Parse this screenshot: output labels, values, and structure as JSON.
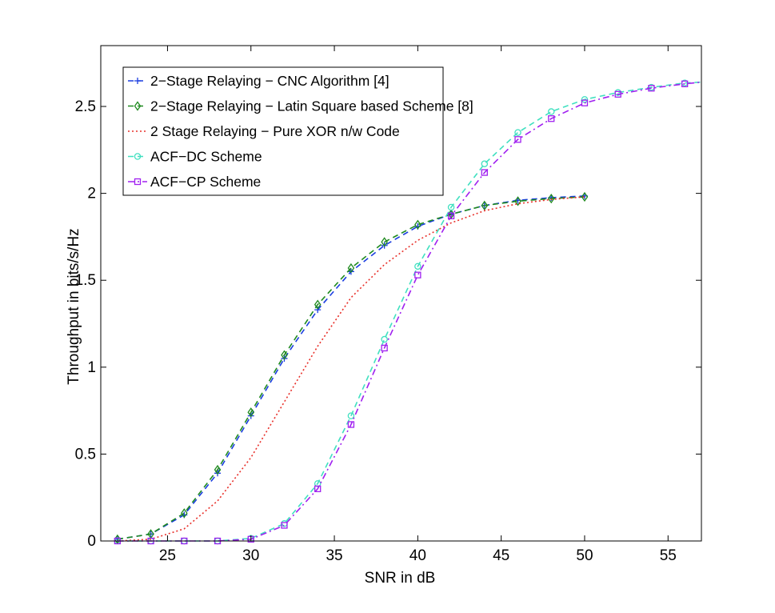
{
  "chart_data": {
    "type": "line",
    "xlabel": "SNR in dB",
    "ylabel": "Throughput in bits/s/Hz",
    "xlim": [
      21,
      57
    ],
    "ylim": [
      0,
      2.85
    ],
    "xticks": [
      25,
      30,
      35,
      40,
      45,
      50,
      55
    ],
    "yticks": [
      0,
      0.5,
      1,
      1.5,
      2,
      2.5
    ],
    "ytick_labels": [
      "0",
      "0.5",
      "1",
      "1.5",
      "2",
      "2.5"
    ],
    "grid": false,
    "legend_position": "top-left",
    "series": [
      {
        "name": "2−Stage Relaying − CNC Algorithm [4]",
        "color": "#1a3de0",
        "dash": "dashed",
        "marker": "plus",
        "points": [
          [
            22,
            0.01
          ],
          [
            24,
            0.04
          ],
          [
            26,
            0.15
          ],
          [
            28,
            0.39
          ],
          [
            30,
            0.72
          ],
          [
            32,
            1.05
          ],
          [
            34,
            1.33
          ],
          [
            36,
            1.55
          ],
          [
            38,
            1.7
          ],
          [
            40,
            1.81
          ],
          [
            42,
            1.88
          ],
          [
            44,
            1.93
          ],
          [
            46,
            1.96
          ],
          [
            48,
            1.975
          ],
          [
            50,
            1.985
          ]
        ]
      },
      {
        "name": "2−Stage Relaying − Latin Square based Scheme [8]",
        "color": "#1f8a1f",
        "dash": "dashed",
        "marker": "diamond",
        "points": [
          [
            22,
            0.01
          ],
          [
            24,
            0.04
          ],
          [
            26,
            0.16
          ],
          [
            28,
            0.41
          ],
          [
            30,
            0.74
          ],
          [
            32,
            1.07
          ],
          [
            34,
            1.36
          ],
          [
            36,
            1.57
          ],
          [
            38,
            1.72
          ],
          [
            40,
            1.82
          ],
          [
            42,
            1.88
          ],
          [
            44,
            1.93
          ],
          [
            46,
            1.955
          ],
          [
            48,
            1.97
          ],
          [
            50,
            1.98
          ]
        ]
      },
      {
        "name": "2 Stage Relaying − Pure XOR n/w Code",
        "color": "#e8302a",
        "dash": "dotted",
        "marker": "none",
        "points": [
          [
            22,
            0.0
          ],
          [
            24,
            0.01
          ],
          [
            26,
            0.07
          ],
          [
            28,
            0.23
          ],
          [
            30,
            0.48
          ],
          [
            32,
            0.8
          ],
          [
            34,
            1.12
          ],
          [
            36,
            1.4
          ],
          [
            38,
            1.59
          ],
          [
            40,
            1.73
          ],
          [
            42,
            1.83
          ],
          [
            44,
            1.9
          ],
          [
            46,
            1.94
          ],
          [
            48,
            1.965
          ],
          [
            50,
            1.98
          ]
        ]
      },
      {
        "name": "ACF−DC Scheme",
        "color": "#40e0c0",
        "dash": "dashed",
        "marker": "circle",
        "points": [
          [
            22,
            0.0
          ],
          [
            24,
            0.0
          ],
          [
            26,
            0.0
          ],
          [
            28,
            0.0
          ],
          [
            30,
            0.015
          ],
          [
            32,
            0.1
          ],
          [
            34,
            0.33
          ],
          [
            36,
            0.72
          ],
          [
            38,
            1.16
          ],
          [
            40,
            1.58
          ],
          [
            42,
            1.92
          ],
          [
            44,
            2.17
          ],
          [
            46,
            2.35
          ],
          [
            48,
            2.47
          ],
          [
            50,
            2.54
          ],
          [
            52,
            2.58
          ],
          [
            54,
            2.61
          ],
          [
            56,
            2.635
          ],
          [
            57,
            2.64
          ]
        ]
      },
      {
        "name": "ACF−CP Scheme",
        "color": "#a020f0",
        "dash": "dashdot",
        "marker": "square",
        "points": [
          [
            22,
            0.0
          ],
          [
            24,
            0.0
          ],
          [
            26,
            0.0
          ],
          [
            28,
            0.0
          ],
          [
            30,
            0.01
          ],
          [
            32,
            0.09
          ],
          [
            34,
            0.3
          ],
          [
            36,
            0.67
          ],
          [
            38,
            1.11
          ],
          [
            40,
            1.53
          ],
          [
            42,
            1.87
          ],
          [
            44,
            2.12
          ],
          [
            46,
            2.31
          ],
          [
            48,
            2.43
          ],
          [
            50,
            2.52
          ],
          [
            52,
            2.57
          ],
          [
            54,
            2.605
          ],
          [
            56,
            2.63
          ],
          [
            57,
            2.64
          ]
        ]
      }
    ]
  }
}
